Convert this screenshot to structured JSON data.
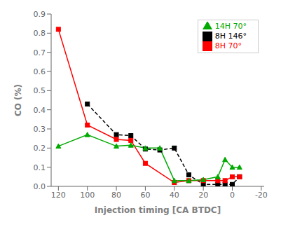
{
  "chart_data": {
    "type": "line",
    "xlabel": "Injection timing [CA BTDC]",
    "ylabel": "CO (%)",
    "xlim": [
      125,
      -22
    ],
    "ylim": [
      0,
      0.9
    ],
    "xticks": [
      120,
      100,
      80,
      60,
      40,
      20,
      0,
      -20
    ],
    "yticks": [
      {
        "value": 0,
        "label": "0.0"
      },
      0.1,
      0.2,
      0.3,
      0.4,
      0.5,
      0.6,
      0.7,
      0.8,
      0.9
    ],
    "legend": "upper right",
    "series": [
      {
        "name": "8H 146°",
        "color": "#000000",
        "marker": "square",
        "line_style": "dashed",
        "x": [
          100,
          80,
          70,
          60,
          50,
          40,
          30,
          20,
          10,
          5,
          0,
          -5
        ],
        "values": [
          0.43,
          0.27,
          0.265,
          0.195,
          0.19,
          0.2,
          0.06,
          0.01,
          0.01,
          0.01,
          0.01,
          0.05
        ]
      },
      {
        "name": "8H 70°",
        "color": "#ff0000",
        "marker": "square",
        "line_style": "solid",
        "x": [
          120,
          100,
          80,
          70,
          60,
          40,
          30,
          20,
          10,
          5,
          0,
          -5
        ],
        "values": [
          0.82,
          0.32,
          0.245,
          0.24,
          0.12,
          0.02,
          0.03,
          0.03,
          0.03,
          0.03,
          0.05,
          0.05
        ]
      },
      {
        "name": "14H 70°",
        "color": "#00aa00",
        "marker": "triangle",
        "line_style": "solid",
        "x": [
          120,
          100,
          80,
          70,
          60,
          50,
          40,
          30,
          20,
          10,
          5,
          0,
          -5
        ],
        "values": [
          0.21,
          0.27,
          0.21,
          0.215,
          0.2,
          0.2,
          0.03,
          0.03,
          0.035,
          0.05,
          0.14,
          0.1,
          0.1
        ]
      }
    ]
  }
}
